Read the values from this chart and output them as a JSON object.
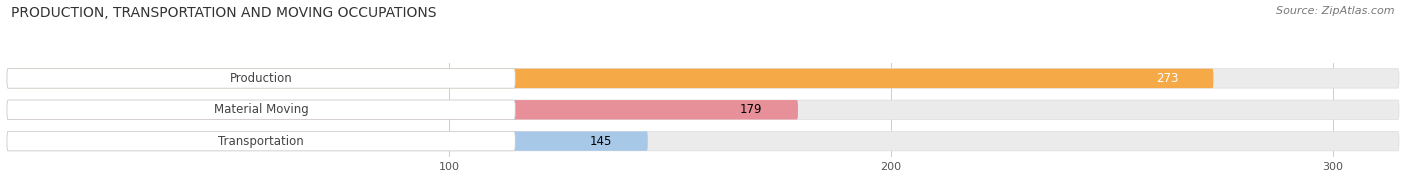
{
  "title": "PRODUCTION, TRANSPORTATION AND MOVING OCCUPATIONS",
  "source_text": "Source: ZipAtlas.com",
  "categories": [
    "Production",
    "Material Moving",
    "Transportation"
  ],
  "values": [
    273,
    179,
    145
  ],
  "bar_colors": [
    "#F5A947",
    "#E8909A",
    "#A8C8E8"
  ],
  "value_text_colors": [
    "white",
    "black",
    "black"
  ],
  "xlim": [
    0,
    315
  ],
  "xticks": [
    100,
    200,
    300
  ],
  "bar_height": 0.62,
  "figsize": [
    14.06,
    1.96
  ],
  "dpi": 100,
  "bg_color": "#FFFFFF",
  "bar_bg_color": "#EBEBEB",
  "title_fontsize": 10,
  "label_fontsize": 8.5,
  "value_fontsize": 8.5,
  "tick_fontsize": 8,
  "source_fontsize": 8
}
